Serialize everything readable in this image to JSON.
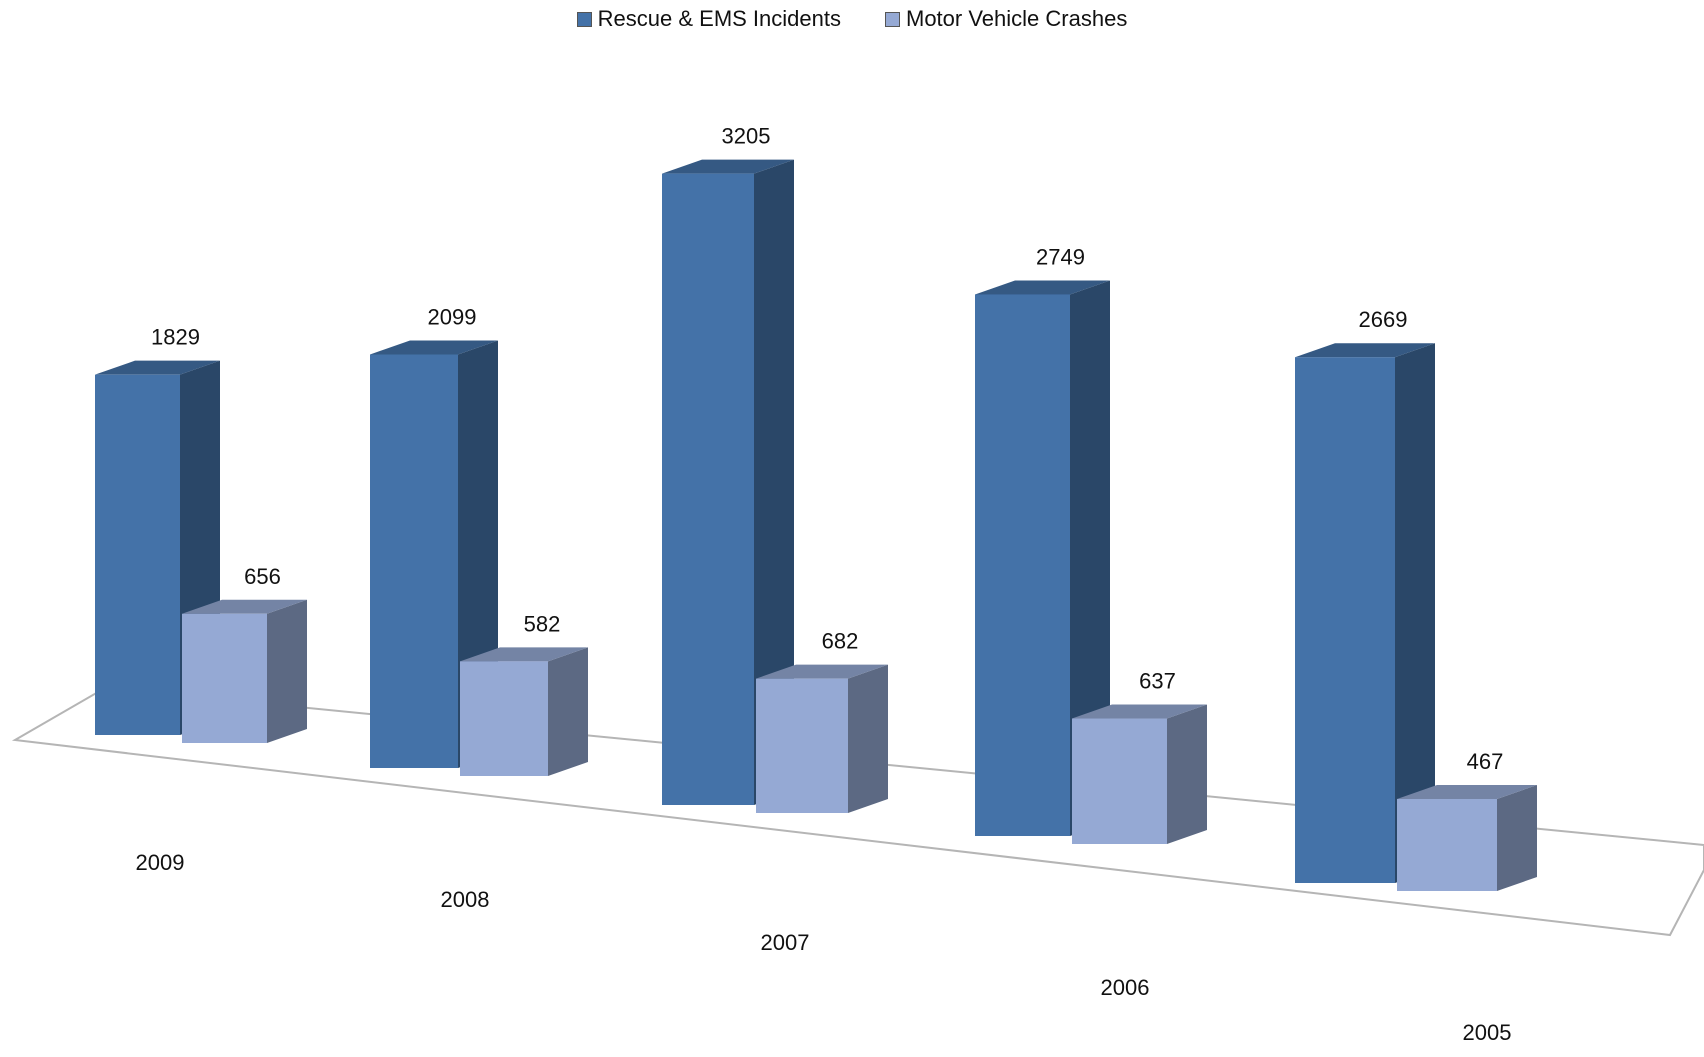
{
  "chart_data": {
    "type": "bar",
    "categories": [
      "2009",
      "2008",
      "2007",
      "2006",
      "2005"
    ],
    "series": [
      {
        "name": "Rescue & EMS Incidents",
        "values": [
          1829,
          2099,
          3205,
          2749,
          2669
        ],
        "color": "#4472a8"
      },
      {
        "name": "Motor Vehicle Crashes",
        "values": [
          656,
          582,
          682,
          637,
          467
        ],
        "color": "#95a9d4"
      }
    ],
    "data_labels": true,
    "legend_position": "top",
    "grid": false,
    "style": "3d-clustered-column"
  }
}
